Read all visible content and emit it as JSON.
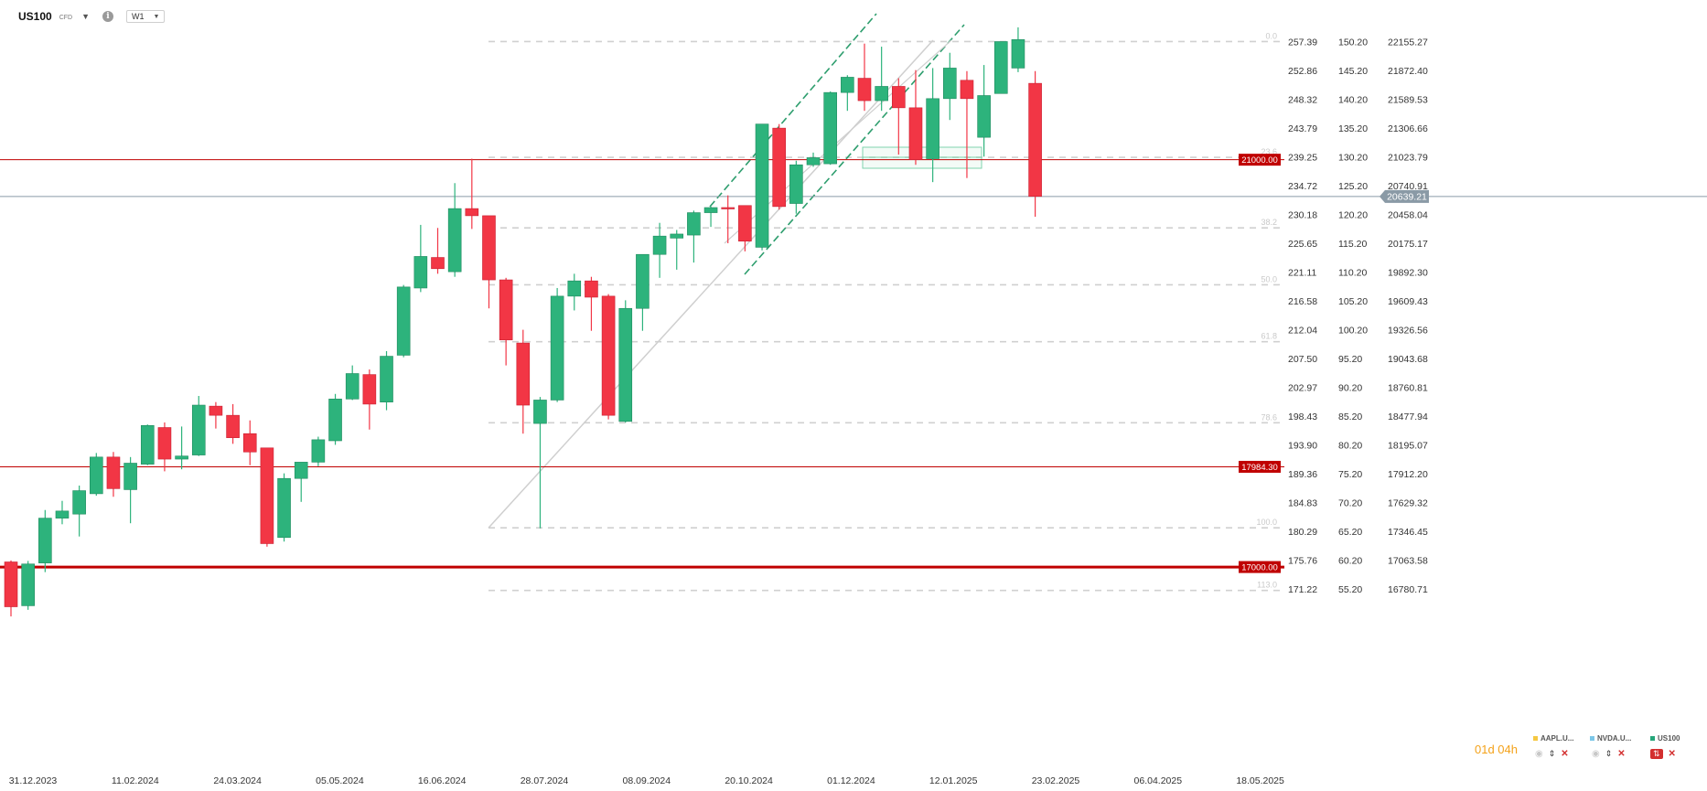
{
  "header": {
    "symbol": "US100",
    "symbol_type": "CFD",
    "info_label": "i",
    "timeframe": "W1"
  },
  "countdown": "01d 04h",
  "legend": [
    {
      "name": "AAPL.U...",
      "color": "#f5c842"
    },
    {
      "name": "NVDA.U...",
      "color": "#7cc7e8"
    },
    {
      "name": "US100",
      "color": "#26a67a"
    }
  ],
  "colors": {
    "bull": "#2db37c",
    "bear": "#f23645",
    "hline": "#c00000",
    "channel": "#2e9e6e",
    "fib": "#d0d0d0",
    "current": "#8a9aa6"
  },
  "chart_data": {
    "type": "candlestick",
    "title": "",
    "ylim": [
      16650,
      22350
    ],
    "y_ticks": [
      "22155.27",
      "21872.40",
      "21589.53",
      "21306.66",
      "21023.79",
      "20740.91",
      "20458.04",
      "20175.17",
      "19892.30",
      "19609.43",
      "19326.56",
      "19043.68",
      "18760.81",
      "18477.94",
      "18195.07",
      "17912.20",
      "17629.32",
      "17346.45",
      "17063.58",
      "16780.71"
    ],
    "y_ticks_2": [
      "257.39",
      "252.86",
      "248.32",
      "243.79",
      "239.25",
      "234.72",
      "230.18",
      "225.65",
      "221.11",
      "216.58",
      "212.04",
      "207.50",
      "202.97",
      "198.43",
      "193.90",
      "189.36",
      "184.83",
      "180.29",
      "175.76",
      "171.22"
    ],
    "y_ticks_3": [
      "150.20",
      "145.20",
      "140.20",
      "135.20",
      "130.20",
      "125.20",
      "120.20",
      "115.20",
      "110.20",
      "105.20",
      "100.20",
      "95.20",
      "90.20",
      "85.20",
      "80.20",
      "75.20",
      "70.20",
      "65.20",
      "60.20",
      "55.20"
    ],
    "x_ticks": [
      "31.12.2023",
      "11.02.2024",
      "24.03.2024",
      "05.05.2024",
      "16.06.2024",
      "28.07.2024",
      "08.09.2024",
      "20.10.2024",
      "01.12.2024",
      "12.01.2025",
      "23.02.2025",
      "06.04.2025",
      "18.05.2025"
    ],
    "candles": [
      {
        "o": 17050,
        "h": 17065,
        "l": 16515,
        "c": 16610
      },
      {
        "o": 16620,
        "h": 17060,
        "l": 16580,
        "c": 17030
      },
      {
        "o": 17040,
        "h": 17560,
        "l": 16950,
        "c": 17480
      },
      {
        "o": 17480,
        "h": 17650,
        "l": 17420,
        "c": 17550
      },
      {
        "o": 17520,
        "h": 17800,
        "l": 17300,
        "c": 17750
      },
      {
        "o": 17720,
        "h": 18120,
        "l": 17700,
        "c": 18080
      },
      {
        "o": 18080,
        "h": 18130,
        "l": 17690,
        "c": 17770
      },
      {
        "o": 17760,
        "h": 18080,
        "l": 17430,
        "c": 18020
      },
      {
        "o": 18010,
        "h": 18400,
        "l": 18000,
        "c": 18390
      },
      {
        "o": 18370,
        "h": 18420,
        "l": 17940,
        "c": 18060
      },
      {
        "o": 18060,
        "h": 18380,
        "l": 17960,
        "c": 18090
      },
      {
        "o": 18100,
        "h": 18680,
        "l": 18090,
        "c": 18590
      },
      {
        "o": 18580,
        "h": 18620,
        "l": 18360,
        "c": 18490
      },
      {
        "o": 18490,
        "h": 18600,
        "l": 18210,
        "c": 18270
      },
      {
        "o": 18310,
        "h": 18440,
        "l": 18000,
        "c": 18130
      },
      {
        "o": 18170,
        "h": 18170,
        "l": 17200,
        "c": 17230
      },
      {
        "o": 17290,
        "h": 17920,
        "l": 17250,
        "c": 17870
      },
      {
        "o": 17870,
        "h": 18010,
        "l": 17640,
        "c": 18030
      },
      {
        "o": 18030,
        "h": 18280,
        "l": 17990,
        "c": 18250
      },
      {
        "o": 18240,
        "h": 18700,
        "l": 18200,
        "c": 18650
      },
      {
        "o": 18650,
        "h": 18980,
        "l": 18640,
        "c": 18900
      },
      {
        "o": 18890,
        "h": 18940,
        "l": 18350,
        "c": 18600
      },
      {
        "o": 18620,
        "h": 19120,
        "l": 18540,
        "c": 19070
      },
      {
        "o": 19080,
        "h": 19770,
        "l": 19060,
        "c": 19750
      },
      {
        "o": 19740,
        "h": 20360,
        "l": 19700,
        "c": 20050
      },
      {
        "o": 20040,
        "h": 20330,
        "l": 19880,
        "c": 19930
      },
      {
        "o": 19900,
        "h": 20770,
        "l": 19850,
        "c": 20520
      },
      {
        "o": 20520,
        "h": 21010,
        "l": 20320,
        "c": 20450
      },
      {
        "o": 20450,
        "h": 20440,
        "l": 19540,
        "c": 19820
      },
      {
        "o": 19820,
        "h": 19840,
        "l": 18980,
        "c": 19230
      },
      {
        "o": 19200,
        "h": 19330,
        "l": 18310,
        "c": 18590
      },
      {
        "o": 18410,
        "h": 18670,
        "l": 17380,
        "c": 18640
      },
      {
        "o": 18640,
        "h": 19740,
        "l": 18620,
        "c": 19660
      },
      {
        "o": 19660,
        "h": 19880,
        "l": 19520,
        "c": 19810
      },
      {
        "o": 19810,
        "h": 19850,
        "l": 19320,
        "c": 19650
      },
      {
        "o": 19660,
        "h": 19680,
        "l": 18450,
        "c": 18490
      },
      {
        "o": 18430,
        "h": 19620,
        "l": 18420,
        "c": 19540
      },
      {
        "o": 19540,
        "h": 20040,
        "l": 19320,
        "c": 20070
      },
      {
        "o": 20070,
        "h": 20380,
        "l": 19840,
        "c": 20250
      },
      {
        "o": 20230,
        "h": 20310,
        "l": 19920,
        "c": 20270
      },
      {
        "o": 20260,
        "h": 20500,
        "l": 19990,
        "c": 20480
      },
      {
        "o": 20480,
        "h": 20540,
        "l": 20340,
        "c": 20530
      },
      {
        "o": 20530,
        "h": 20650,
        "l": 20180,
        "c": 20520
      },
      {
        "o": 20550,
        "h": 20550,
        "l": 20100,
        "c": 20200
      },
      {
        "o": 20140,
        "h": 21350,
        "l": 20110,
        "c": 21350
      },
      {
        "o": 21310,
        "h": 21350,
        "l": 20510,
        "c": 20540
      },
      {
        "o": 20570,
        "h": 20990,
        "l": 20470,
        "c": 20950
      },
      {
        "o": 20950,
        "h": 21070,
        "l": 20930,
        "c": 21020
      },
      {
        "o": 20960,
        "h": 21670,
        "l": 20950,
        "c": 21660
      },
      {
        "o": 21660,
        "h": 21830,
        "l": 21480,
        "c": 21810
      },
      {
        "o": 21800,
        "h": 22140,
        "l": 21480,
        "c": 21580
      },
      {
        "o": 21580,
        "h": 22110,
        "l": 21480,
        "c": 21720
      },
      {
        "o": 21720,
        "h": 21800,
        "l": 21050,
        "c": 21510
      },
      {
        "o": 21510,
        "h": 21880,
        "l": 20950,
        "c": 21000
      },
      {
        "o": 21010,
        "h": 21900,
        "l": 20780,
        "c": 21600
      },
      {
        "o": 21600,
        "h": 22050,
        "l": 21390,
        "c": 21900
      },
      {
        "o": 21780,
        "h": 21870,
        "l": 20820,
        "c": 21600
      },
      {
        "o": 21220,
        "h": 21930,
        "l": 21030,
        "c": 21630
      },
      {
        "o": 21650,
        "h": 22160,
        "l": 21650,
        "c": 22160
      },
      {
        "o": 21900,
        "h": 22300,
        "l": 21860,
        "c": 22180
      },
      {
        "o": 21750,
        "h": 21870,
        "l": 20440,
        "c": 20640
      }
    ],
    "horizontal_levels": [
      {
        "value": 21000.0,
        "label": "21000.00"
      },
      {
        "value": 17984.3,
        "label": "17984.30"
      },
      {
        "value": 17000.0,
        "label": "17000.00"
      }
    ],
    "current_price": {
      "value": 20639.21,
      "label": "20639.21"
    },
    "fib_levels": [
      {
        "label": "0.0",
        "value": 22160
      },
      {
        "label": "23.6",
        "value": 21023
      },
      {
        "label": "38.2",
        "value": 20331
      },
      {
        "label": "50.0",
        "value": 19772
      },
      {
        "label": "61.8",
        "value": 19213
      },
      {
        "label": "78.6",
        "value": 18417
      },
      {
        "label": "100.0",
        "value": 17385
      },
      {
        "label": "113.0",
        "value": 16770
      }
    ]
  }
}
